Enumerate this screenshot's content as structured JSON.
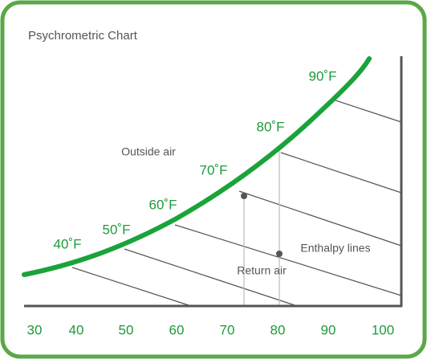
{
  "title": "Psychrometric Chart",
  "x_axis": {
    "labels": [
      30,
      40,
      50,
      60,
      70,
      80,
      90,
      100
    ]
  },
  "curve_labels": [
    "40˚F",
    "50˚F",
    "60˚F",
    "70˚F",
    "80˚F",
    "90˚F"
  ],
  "annotations": {
    "outside_air": "Outside air",
    "enthalpy_lines": "Enthalpy lines",
    "return_air": "Return air"
  }
}
